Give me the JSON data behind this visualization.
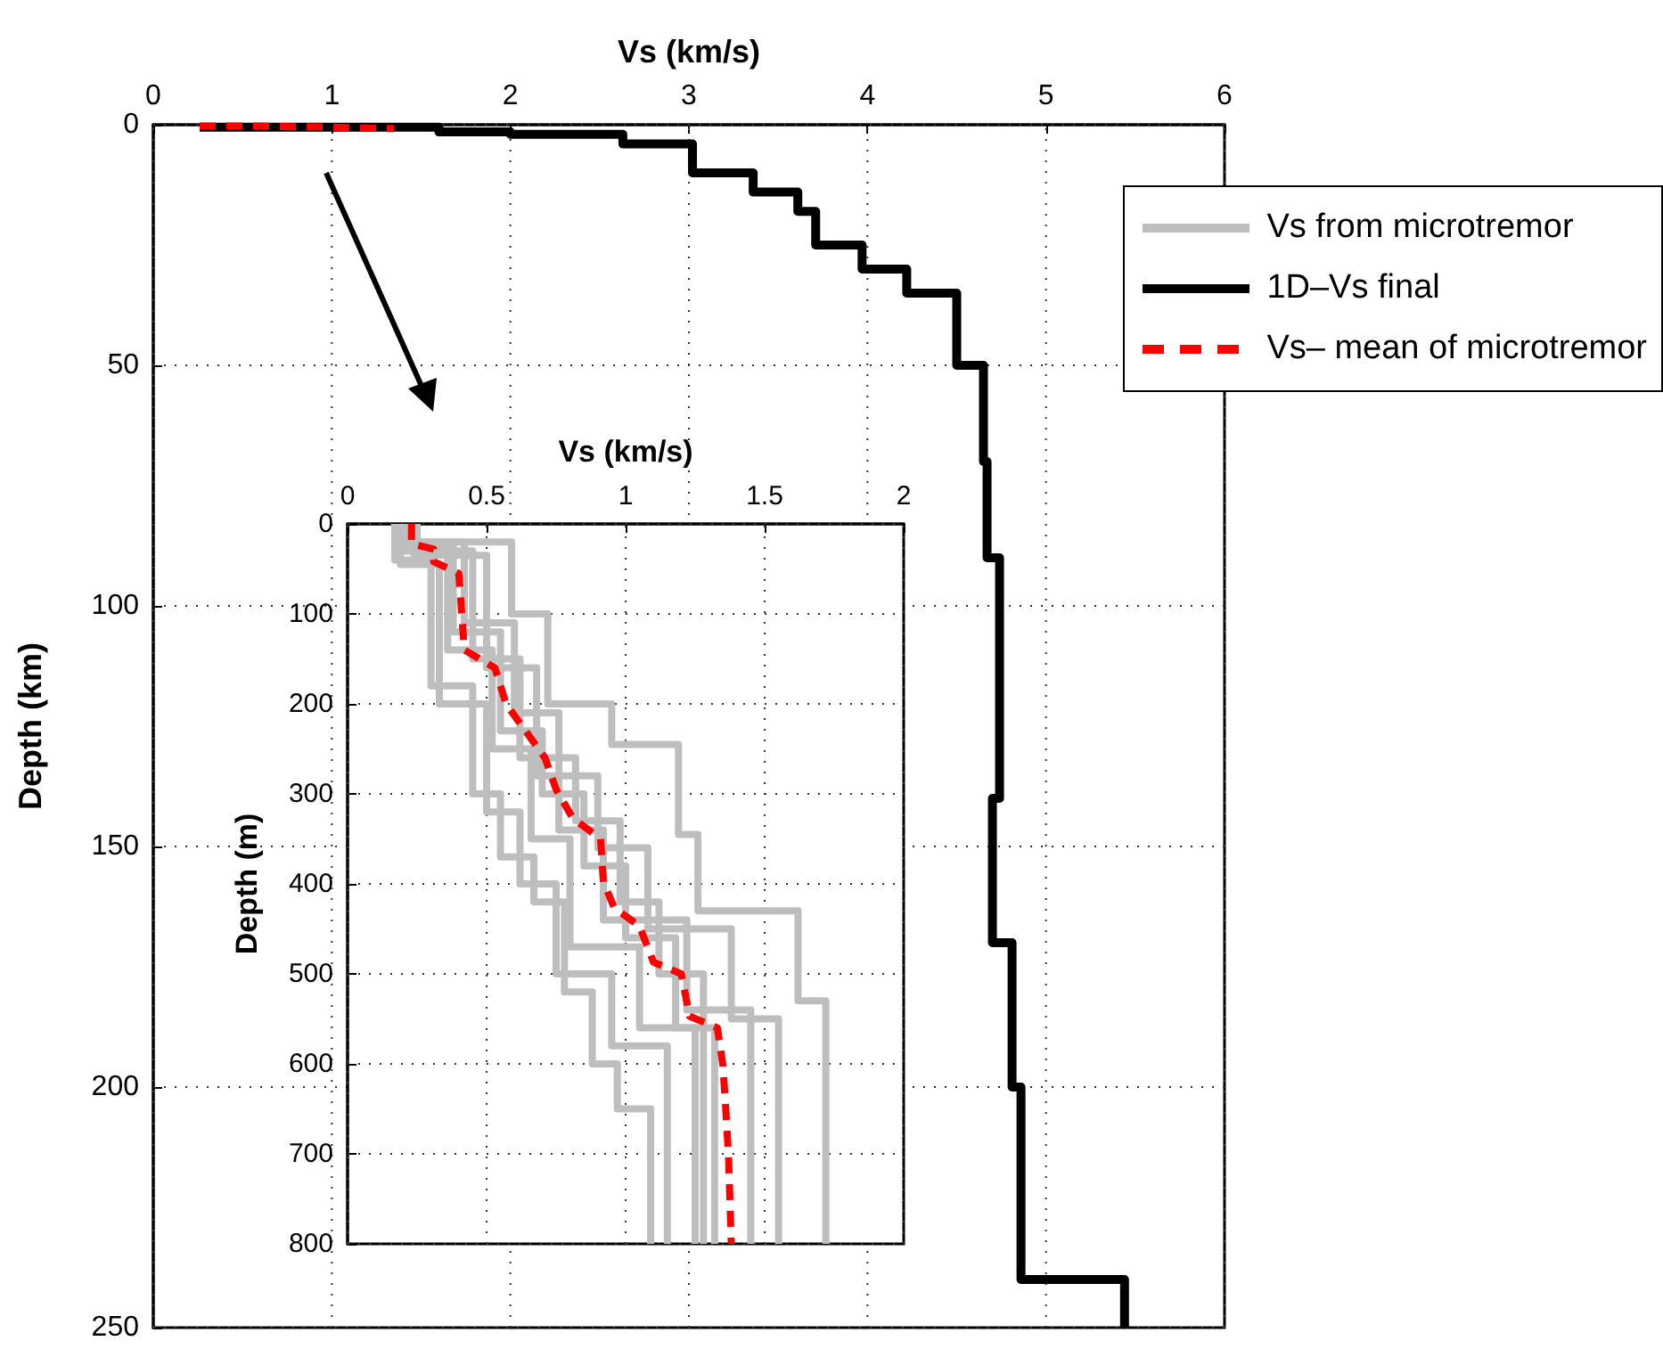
{
  "chart_data": [
    {
      "type": "line",
      "xlabel": "Vs (km/s)",
      "ylabel": "Depth (km)",
      "xlim": [
        0,
        6
      ],
      "xticks": [
        0,
        1,
        2,
        3,
        4,
        5,
        6
      ],
      "ylim": [
        250,
        0
      ],
      "yticks": [
        0,
        50,
        100,
        150,
        200,
        250
      ],
      "grid": true,
      "legend": "top right",
      "marker": "none",
      "series": [
        {
          "name": "1D–Vs final",
          "color": "#000000",
          "line_style": "solid",
          "x": [
            0.26,
            1.6,
            1.6,
            2.0,
            2.0,
            2.63,
            2.63,
            3.02,
            3.02,
            3.36,
            3.36,
            3.61,
            3.61,
            3.71,
            3.71,
            3.97,
            3.97,
            4.22,
            4.22,
            4.5,
            4.5,
            4.65,
            4.65,
            4.67,
            4.67,
            4.74,
            4.74,
            4.7,
            4.7,
            4.81,
            4.81,
            4.86,
            4.86,
            5.44,
            5.44
          ],
          "values": [
            0.5,
            0.5,
            1.5,
            1.5,
            2,
            2,
            4,
            4,
            10,
            10,
            14,
            14,
            18,
            18,
            25,
            25,
            30,
            30,
            35,
            35,
            50,
            50,
            70,
            70,
            90,
            90,
            140,
            140,
            170,
            170,
            200,
            200,
            240,
            240,
            250
          ]
        },
        {
          "name": "Vs– mean of microtremor",
          "color": "#ff0000",
          "line_style": "dashed",
          "x": [
            0.26,
            0.6,
            1.0,
            1.35
          ],
          "values": [
            0.3,
            0.3,
            0.5,
            0.8
          ]
        }
      ]
    },
    {
      "type": "line",
      "xlabel": "Vs (km/s)",
      "ylabel": "Depth (m)",
      "xlim": [
        0,
        2
      ],
      "xticks": [
        0,
        0.5,
        1,
        1.5,
        2
      ],
      "ylim": [
        800,
        0
      ],
      "yticks": [
        0,
        100,
        200,
        300,
        400,
        500,
        600,
        700,
        800
      ],
      "grid": true,
      "legend": "top right",
      "marker": "none",
      "series": [
        {
          "name": "Vs from microtremor",
          "color": "#bebebe",
          "line_style": "solid",
          "x": [
            0.17,
            0.17,
            0.3,
            0.3,
            0.45,
            0.45,
            0.55,
            0.55,
            0.67,
            0.67,
            0.78,
            0.78,
            0.88,
            0.88,
            0.97,
            0.97,
            1.09,
            1.09
          ],
          "values": [
            0,
            40,
            40,
            180,
            180,
            300,
            300,
            370,
            370,
            420,
            420,
            520,
            520,
            600,
            600,
            650,
            650,
            800
          ]
        },
        {
          "color": "#bebebe",
          "line_style": "solid",
          "x": [
            0.25,
            0.25,
            0.59,
            0.59,
            0.72,
            0.72,
            0.95,
            0.95,
            1.19,
            1.19,
            1.26,
            1.26,
            1.62,
            1.62,
            1.72,
            1.72
          ],
          "values": [
            0,
            20,
            20,
            100,
            100,
            200,
            200,
            245,
            245,
            345,
            345,
            430,
            430,
            530,
            530,
            800
          ]
        },
        {
          "color": "#bebebe",
          "line_style": "solid",
          "x": [
            0.2,
            0.2,
            0.45,
            0.45,
            0.62,
            0.62,
            0.82,
            0.82,
            0.98,
            0.98,
            1.12,
            1.12,
            1.28,
            1.28
          ],
          "values": [
            0,
            30,
            30,
            150,
            150,
            260,
            260,
            330,
            330,
            420,
            420,
            500,
            500,
            800
          ]
        },
        {
          "color": "#bebebe",
          "line_style": "solid",
          "x": [
            0.22,
            0.22,
            0.38,
            0.38,
            0.55,
            0.55,
            0.7,
            0.7,
            0.85,
            0.85,
            1.0,
            1.0,
            1.18,
            1.18,
            1.32,
            1.32
          ],
          "values": [
            0,
            25,
            25,
            120,
            120,
            230,
            230,
            300,
            300,
            380,
            380,
            460,
            460,
            560,
            560,
            800
          ]
        },
        {
          "color": "#bebebe",
          "line_style": "solid",
          "x": [
            0.24,
            0.24,
            0.5,
            0.5,
            0.68,
            0.68,
            0.9,
            0.9,
            1.08,
            1.08,
            1.38,
            1.38,
            1.55,
            1.55
          ],
          "values": [
            0,
            35,
            35,
            160,
            160,
            280,
            280,
            360,
            360,
            450,
            450,
            550,
            550,
            800
          ]
        },
        {
          "color": "#bebebe",
          "line_style": "solid",
          "x": [
            0.19,
            0.19,
            0.33,
            0.33,
            0.5,
            0.5,
            0.62,
            0.62,
            0.75,
            0.75,
            0.95,
            0.95,
            1.15,
            1.15
          ],
          "values": [
            0,
            45,
            45,
            200,
            200,
            320,
            320,
            400,
            400,
            500,
            500,
            580,
            580,
            800
          ]
        },
        {
          "color": "#bebebe",
          "line_style": "solid",
          "x": [
            0.23,
            0.23,
            0.42,
            0.42,
            0.6,
            0.6,
            0.76,
            0.76,
            0.92,
            0.92,
            1.22,
            1.22,
            1.45,
            1.45
          ],
          "values": [
            0,
            20,
            20,
            110,
            110,
            210,
            210,
            340,
            340,
            440,
            440,
            540,
            540,
            800
          ]
        },
        {
          "color": "#bebebe",
          "line_style": "solid",
          "x": [
            0.21,
            0.21,
            0.36,
            0.36,
            0.52,
            0.52,
            0.66,
            0.66,
            0.8,
            0.8,
            1.05,
            1.05,
            1.25,
            1.25
          ],
          "values": [
            0,
            30,
            30,
            140,
            140,
            250,
            250,
            350,
            350,
            470,
            470,
            560,
            560,
            800
          ]
        },
        {
          "color": "#ff0000",
          "line_style": "dashed",
          "x": [
            0.23,
            0.23,
            0.31,
            0.31,
            0.4,
            0.41,
            0.42,
            0.53,
            0.57,
            0.64,
            0.71,
            0.75,
            0.81,
            0.91,
            0.92,
            0.96,
            1.05,
            1.1,
            1.2,
            1.23,
            1.33,
            1.35,
            1.36,
            1.37,
            1.38
          ],
          "values": [
            0,
            22,
            28,
            42,
            55,
            98,
            140,
            160,
            200,
            230,
            260,
            295,
            327,
            350,
            398,
            427,
            447,
            487,
            500,
            547,
            560,
            602,
            650,
            701,
            800
          ]
        }
      ]
    }
  ]
}
